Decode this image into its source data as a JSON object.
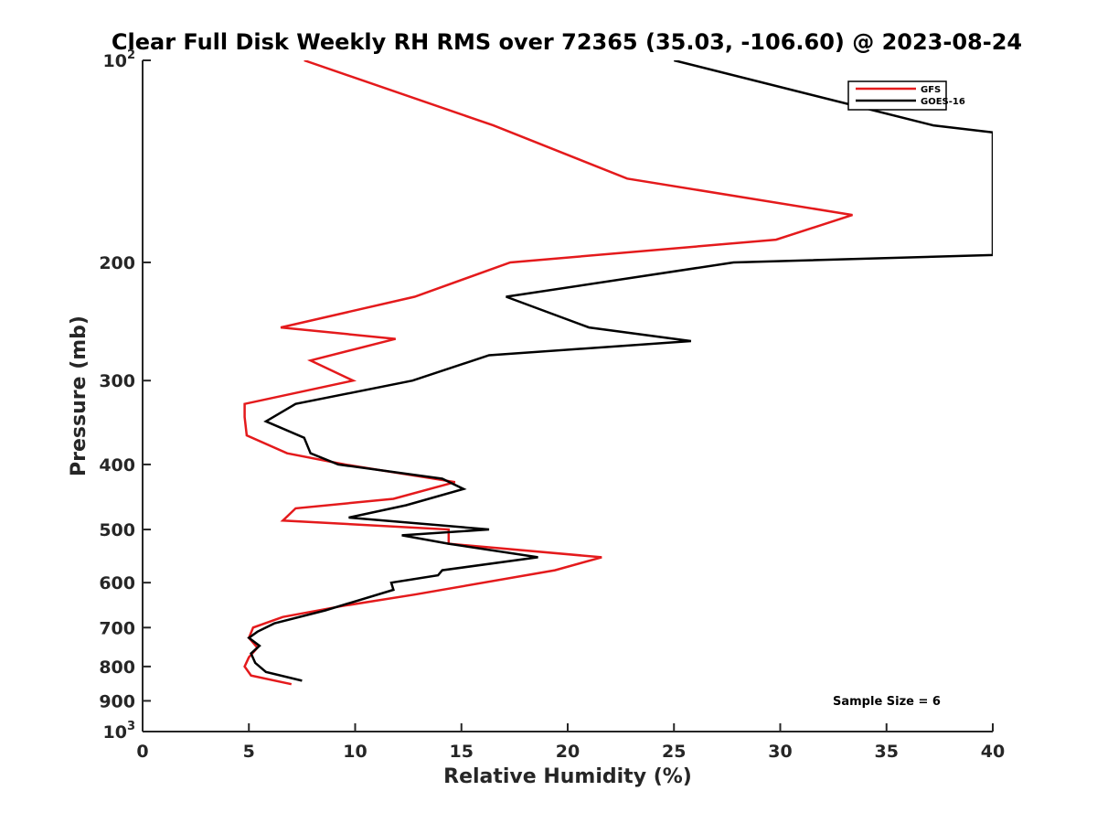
{
  "chart_data": {
    "type": "line",
    "title": "Clear Full Disk Weekly RH RMS over 72365 (35.03, -106.60) @ 2023-08-24",
    "xlabel": "Relative Humidity (%)",
    "ylabel": "Pressure (mb)",
    "xlim": [
      0,
      40
    ],
    "ylim": [
      100,
      1000
    ],
    "y_scale": "log",
    "y_reversed": true,
    "x_ticks": [
      "0",
      "5",
      "10",
      "15",
      "20",
      "25",
      "30",
      "35",
      "40"
    ],
    "y_ticks": [
      {
        "value": 100,
        "base": "10",
        "exp": "2"
      },
      {
        "value": 200,
        "base": "200",
        "exp": ""
      },
      {
        "value": 300,
        "base": "300",
        "exp": ""
      },
      {
        "value": 400,
        "base": "400",
        "exp": ""
      },
      {
        "value": 500,
        "base": "500",
        "exp": ""
      },
      {
        "value": 600,
        "base": "600",
        "exp": ""
      },
      {
        "value": 700,
        "base": "700",
        "exp": ""
      },
      {
        "value": 800,
        "base": "800",
        "exp": ""
      },
      {
        "value": 900,
        "base": "900",
        "exp": ""
      },
      {
        "value": 1000,
        "base": "10",
        "exp": "3"
      }
    ],
    "grid": false,
    "legend_position": "top-right",
    "annotation": "Sample Size = 6",
    "series": [
      {
        "name": "GFS",
        "color": "#e41a1c",
        "points": [
          [
            7.6,
            100
          ],
          [
            16.5,
            125
          ],
          [
            22.8,
            150
          ],
          [
            33.4,
            170
          ],
          [
            29.8,
            185
          ],
          [
            17.3,
            200
          ],
          [
            12.8,
            225
          ],
          [
            6.5,
            250
          ],
          [
            11.9,
            260
          ],
          [
            7.9,
            280
          ],
          [
            9.9,
            300
          ],
          [
            4.8,
            325
          ],
          [
            4.8,
            340
          ],
          [
            4.9,
            362
          ],
          [
            6.8,
            385
          ],
          [
            9.5,
            400
          ],
          [
            14.7,
            425
          ],
          [
            11.8,
            450
          ],
          [
            7.2,
            465
          ],
          [
            6.6,
            485
          ],
          [
            14.4,
            500
          ],
          [
            14.4,
            525
          ],
          [
            21.6,
            550
          ],
          [
            19.4,
            575
          ],
          [
            12.8,
            625
          ],
          [
            9.4,
            650
          ],
          [
            6.6,
            675
          ],
          [
            5.2,
            700
          ],
          [
            5.0,
            725
          ],
          [
            5.4,
            750
          ],
          [
            5.0,
            775
          ],
          [
            4.8,
            800
          ],
          [
            5.1,
            825
          ],
          [
            7.0,
            850
          ]
        ]
      },
      {
        "name": "GOES-16",
        "color": "#000000",
        "points": [
          [
            25.0,
            100
          ],
          [
            37.2,
            125
          ],
          [
            40.0,
            128
          ],
          [
            40.0,
            195
          ],
          [
            27.8,
            200
          ],
          [
            17.1,
            225
          ],
          [
            21.0,
            250
          ],
          [
            25.8,
            262
          ],
          [
            16.3,
            275
          ],
          [
            12.7,
            300
          ],
          [
            7.2,
            325
          ],
          [
            5.8,
            345
          ],
          [
            7.6,
            365
          ],
          [
            7.9,
            385
          ],
          [
            9.2,
            400
          ],
          [
            14.1,
            420
          ],
          [
            15.1,
            435
          ],
          [
            12.4,
            460
          ],
          [
            9.7,
            480
          ],
          [
            16.3,
            500
          ],
          [
            12.2,
            510
          ],
          [
            14.4,
            525
          ],
          [
            18.6,
            550
          ],
          [
            14.1,
            575
          ],
          [
            13.9,
            585
          ],
          [
            11.7,
            600
          ],
          [
            11.8,
            615
          ],
          [
            8.6,
            660
          ],
          [
            6.2,
            690
          ],
          [
            5.4,
            710
          ],
          [
            5.0,
            725
          ],
          [
            5.5,
            745
          ],
          [
            5.1,
            765
          ],
          [
            5.3,
            790
          ],
          [
            5.8,
            815
          ],
          [
            7.5,
            840
          ]
        ]
      }
    ]
  }
}
